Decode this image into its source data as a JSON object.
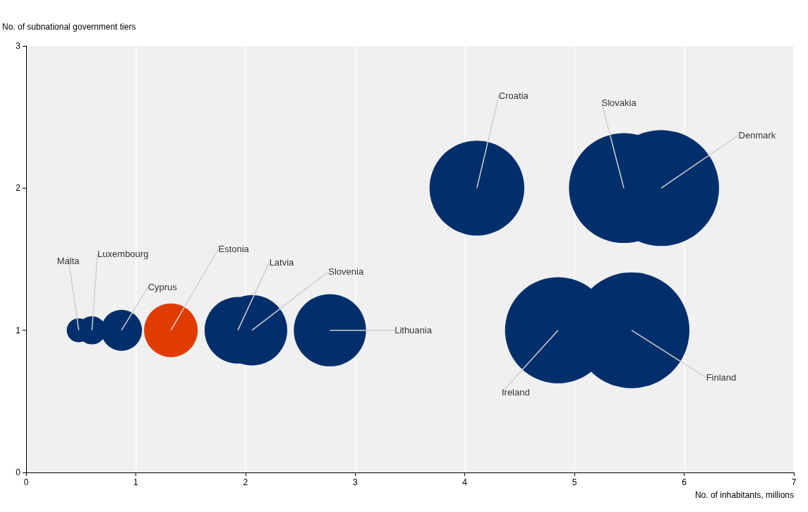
{
  "chart_data": {
    "type": "bubble",
    "xlabel": "No. of inhabitants, millions",
    "ylabel": "No. of subnational government tiers",
    "x": [
      0.48,
      0.6,
      0.87,
      1.32,
      1.93,
      2.06,
      2.77,
      4.11,
      5.45,
      5.79,
      4.85,
      5.52
    ],
    "values": [
      1,
      1,
      1,
      1,
      1,
      1,
      1,
      2,
      2,
      2,
      1,
      1
    ],
    "sizes": [
      0.043,
      0.059,
      0.125,
      0.215,
      0.33,
      0.37,
      0.39,
      0.67,
      0.9,
      1,
      0.84,
      1
    ],
    "colors": [
      "#002f6c",
      "#002f6c",
      "#002f6c",
      "#e03c00",
      "#002f6c",
      "#002f6c",
      "#002f6c",
      "#002f6c",
      "#002f6c",
      "#002f6c",
      "#002f6c",
      "#002f6c"
    ],
    "annotations": [
      {
        "text": "Malta",
        "x": 0.48,
        "y": 1
      },
      {
        "text": "Luxembourg",
        "x": 0.6,
        "y": 1
      },
      {
        "text": "Cyprus",
        "x": 0.87,
        "y": 1
      },
      {
        "text": "Estonia",
        "x": 1.32,
        "y": 1
      },
      {
        "text": "Latvia",
        "x": 1.93,
        "y": 1
      },
      {
        "text": "Slovenia",
        "x": 2.06,
        "y": 1
      },
      {
        "text": "Lithuania",
        "x": 2.77,
        "y": 1
      },
      {
        "text": "Croatia",
        "x": 4.11,
        "y": 2
      },
      {
        "text": "Slovakia",
        "x": 5.45,
        "y": 2
      },
      {
        "text": "Denmark",
        "x": 5.79,
        "y": 2
      },
      {
        "text": "Ireland",
        "x": 4.85,
        "y": 1
      },
      {
        "text": "Finland",
        "x": 5.52,
        "y": 1
      }
    ],
    "xlim": [
      0,
      7
    ],
    "xticks": [
      0,
      1,
      2,
      3,
      4,
      5,
      6,
      7
    ],
    "ylim": [
      0,
      3
    ],
    "yticks": [
      0,
      1,
      2,
      3
    ],
    "grid": "x"
  }
}
